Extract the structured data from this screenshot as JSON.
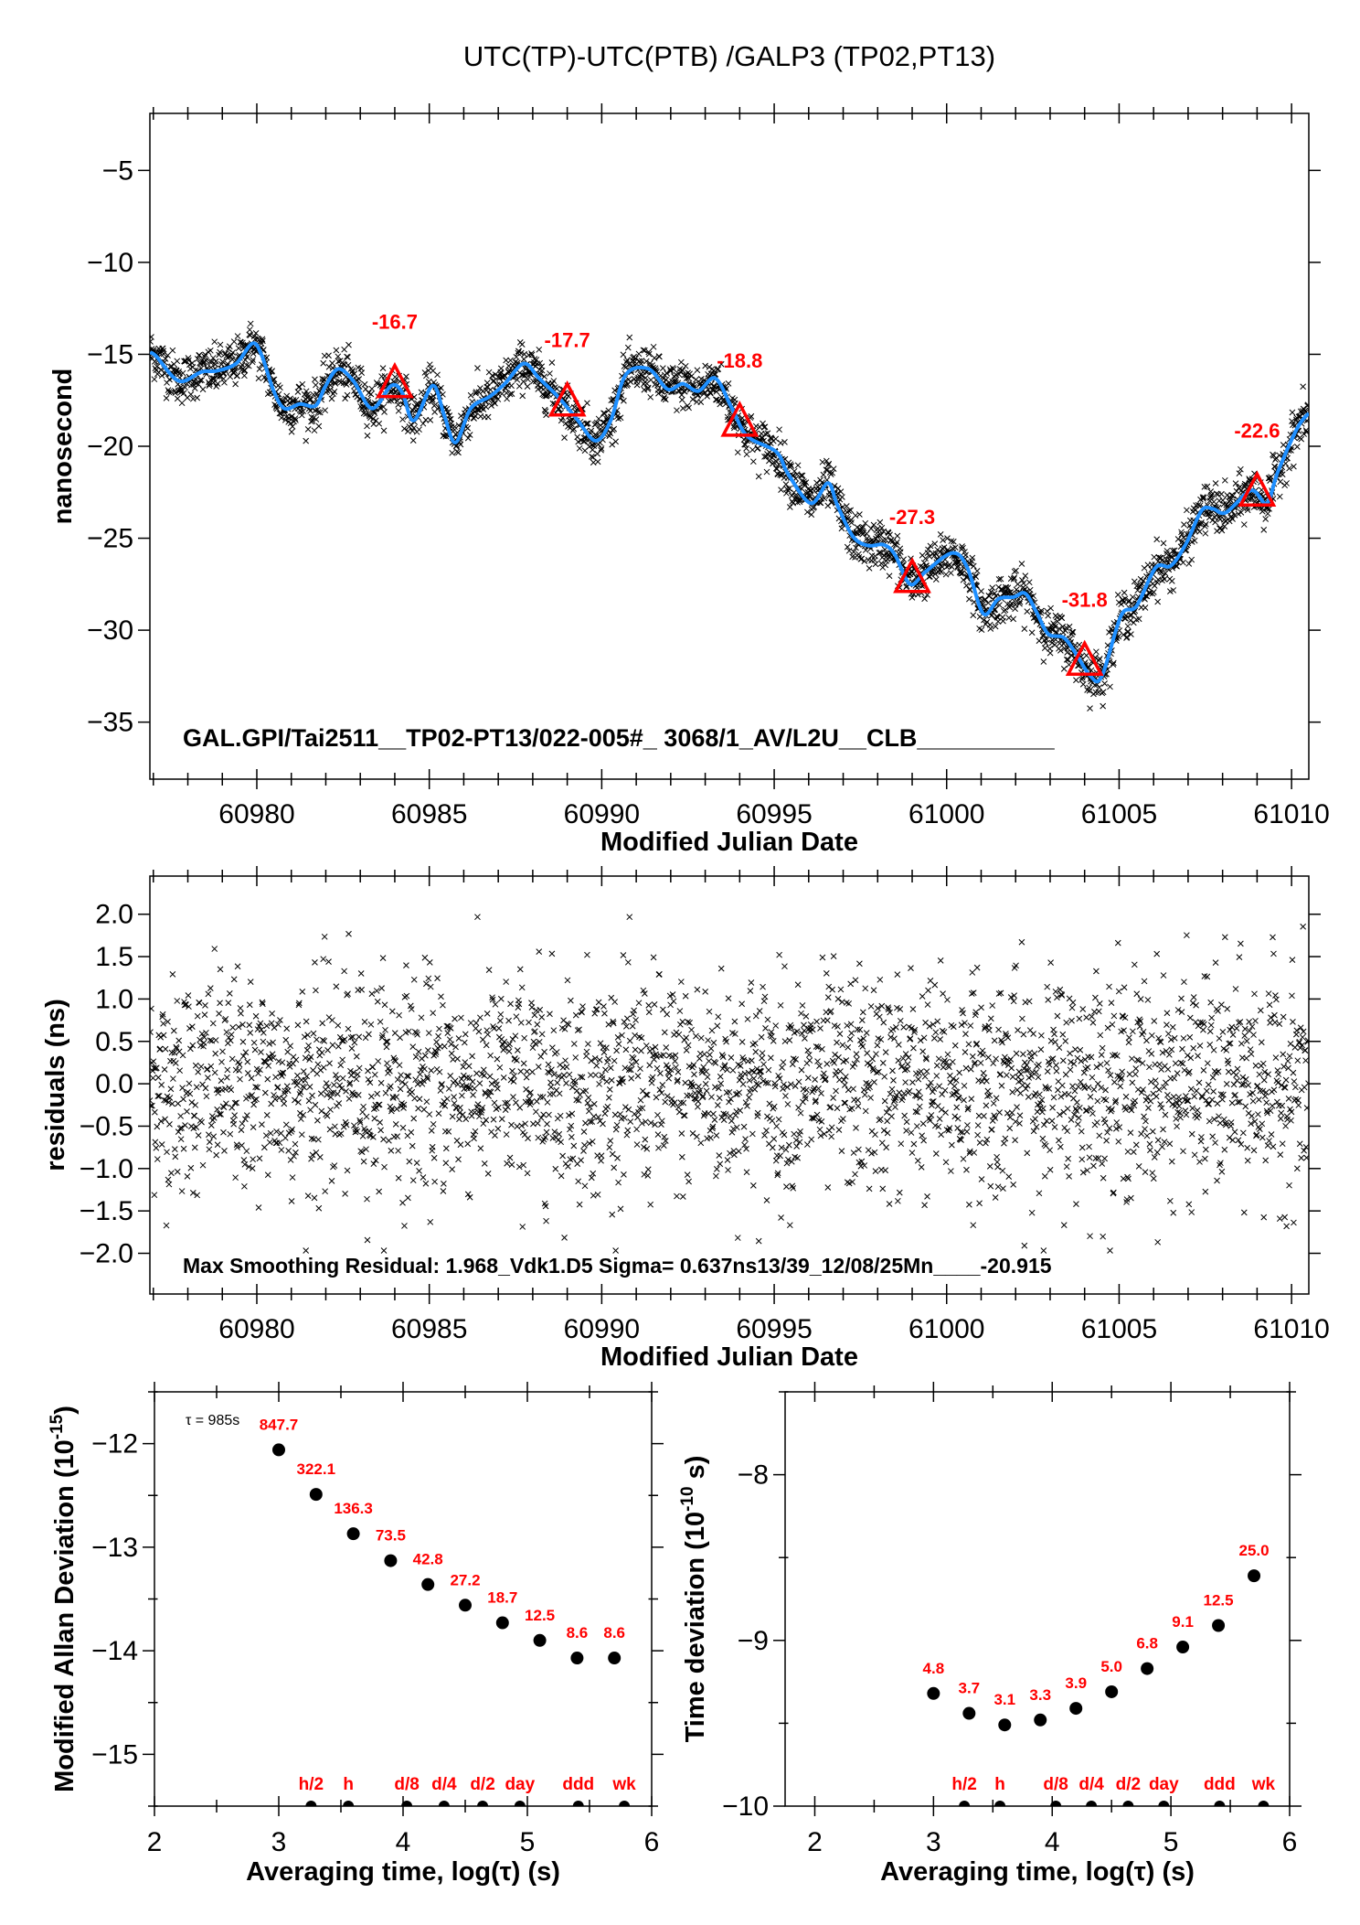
{
  "title": "UTC(TP)-UTC(PTB)  /GALP3  (TP02,PT13)",
  "chart_data": [
    {
      "id": "time-series",
      "type": "scatter",
      "xlabel": "Modified Julian Date",
      "ylabel": "nanosecond",
      "xlim": [
        60976.9,
        61010.5
      ],
      "ylim": [
        -38.1,
        -1.9
      ],
      "xticks": [
        60980,
        60985,
        60990,
        60995,
        61000,
        61005,
        61010
      ],
      "xtick_labels": [
        "60980",
        "60985",
        "60990",
        "60995",
        "61000",
        "61005",
        "61010"
      ],
      "yticks": [
        -5,
        -10,
        -15,
        -20,
        -25,
        -30,
        -35
      ],
      "ytick_labels": [
        "−5",
        "−10",
        "−15",
        "−20",
        "−25",
        "−30",
        "−35"
      ],
      "annotation": "GAL.GPI/Tai2511__TP02-PT13/022-005#_  3068/1_AV/L2U__CLB__________",
      "point_color": "#000000",
      "line_color": "#1e8fff",
      "marker_color": "#ff0000",
      "smooth_curve": {
        "x": [
          60976.9,
          60977.08,
          60977.74,
          60978.4,
          60978.84,
          60979.4,
          60979.88,
          60980.15,
          60980.48,
          60980.8,
          60981.25,
          60981.7,
          60981.97,
          60982.35,
          60982.8,
          60983.34,
          60983.9,
          60984.22,
          60984.55,
          60985.1,
          60985.43,
          60985.76,
          60986.2,
          60986.75,
          60987.19,
          60987.74,
          60988.18,
          60988.73,
          60989.27,
          60989.82,
          60990.26,
          60990.7,
          60991.36,
          60991.91,
          60992.35,
          60992.8,
          60993.29,
          60993.78,
          60994.22,
          60995.06,
          60995.4,
          60996.06,
          60996.56,
          60996.83,
          60997.28,
          60997.72,
          60998.17,
          60998.5,
          60998.94,
          60999.4,
          61000.17,
          61000.6,
          61001.06,
          61001.5,
          61001.94,
          61002.28,
          61002.6,
          61002.94,
          61003.39,
          61003.72,
          61004.17,
          61004.5,
          61005.06,
          61005.5,
          61006.06,
          61006.5,
          61006.94,
          61007.39,
          61007.72,
          61008.1,
          61008.83,
          61009.28,
          61009.6,
          61010.17,
          61010.5
        ],
        "y": [
          -14.9,
          -15.1,
          -16.45,
          -15.95,
          -15.9,
          -15.5,
          -14.4,
          -15.1,
          -16.95,
          -17.95,
          -17.7,
          -17.8,
          -16.8,
          -15.8,
          -16.45,
          -17.95,
          -16.7,
          -17.1,
          -18.6,
          -16.7,
          -18.3,
          -19.8,
          -17.95,
          -17.3,
          -16.6,
          -15.5,
          -16.3,
          -17.3,
          -18.5,
          -19.7,
          -18.6,
          -16.1,
          -15.8,
          -16.9,
          -16.6,
          -17.0,
          -16.3,
          -17.95,
          -19.45,
          -20.3,
          -21.5,
          -23.1,
          -22.0,
          -23.2,
          -24.9,
          -25.4,
          -25.35,
          -25.9,
          -27.5,
          -26.8,
          -25.8,
          -26.6,
          -29.1,
          -28.3,
          -28.2,
          -28.0,
          -29.0,
          -30.2,
          -30.4,
          -31.2,
          -32.5,
          -32.5,
          -29.2,
          -28.7,
          -26.6,
          -26.5,
          -25.3,
          -23.5,
          -23.4,
          -23.6,
          -22.4,
          -23.1,
          -21.4,
          -19.0,
          -18.2
        ]
      },
      "markers": [
        {
          "x": 60984,
          "y": -16.7,
          "label": "-16.7"
        },
        {
          "x": 60989,
          "y": -17.7,
          "label": "-17.7"
        },
        {
          "x": 60994,
          "y": -18.8,
          "label": "-18.8"
        },
        {
          "x": 60999,
          "y": -27.3,
          "label": "-27.3"
        },
        {
          "x": 61004,
          "y": -31.8,
          "label": "-31.8"
        },
        {
          "x": 61009,
          "y": -22.6,
          "label": "-22.6"
        }
      ]
    },
    {
      "id": "residuals",
      "type": "scatter",
      "xlabel": "Modified Julian Date",
      "ylabel": "residuals (ns)",
      "xlim": [
        60976.9,
        61010.5
      ],
      "ylim": [
        -2.48,
        2.45
      ],
      "xticks": [
        60980,
        60985,
        60990,
        60995,
        61000,
        61005,
        61010
      ],
      "xtick_labels": [
        "60980",
        "60985",
        "60990",
        "60995",
        "61000",
        "61005",
        "61010"
      ],
      "yticks": [
        2.0,
        1.5,
        1.0,
        0.5,
        0.0,
        -0.5,
        -1.0,
        -1.5,
        -2.0
      ],
      "ytick_labels": [
        "2.0",
        "1.5",
        "1.0",
        "0.5",
        "0.0",
        "−0.5",
        "−1.0",
        "−1.5",
        "−2.0"
      ],
      "annotation": "Max Smoothing Residual: 1.968_Vdk1.D5  Sigma= 0.637ns13/39_12/08/25Mn____-20.915",
      "sigma": 0.637,
      "max_residual": 1.968
    },
    {
      "id": "mdev",
      "type": "scatter",
      "xlabel": "Averaging time, log(τ) (s)",
      "ylabel": "Modified Allan Deviation (10",
      "ylabel_exp": "-15",
      "ylabel_tail": ")",
      "xlim": [
        2,
        6
      ],
      "ylim": [
        -15.5,
        -11.5
      ],
      "xticks": [
        2,
        3,
        4,
        5,
        6
      ],
      "xtick_labels": [
        "2",
        "3",
        "4",
        "5",
        "6"
      ],
      "yticks": [
        -12,
        -13,
        -14,
        -15
      ],
      "ytick_labels": [
        "−12",
        "−13",
        "−14",
        "−15"
      ],
      "note": "τ = 985s",
      "x": [
        3.0,
        3.3,
        3.6,
        3.9,
        4.2,
        4.5,
        4.8,
        5.1,
        5.4,
        5.7
      ],
      "y": [
        -12.06,
        -12.49,
        -12.87,
        -13.13,
        -13.36,
        -13.56,
        -13.73,
        -13.9,
        -14.07,
        -14.07
      ],
      "point_labels": [
        "847.7",
        "322.1",
        "136.3",
        "73.5",
        "42.8",
        "27.2",
        "18.7",
        "12.5",
        "8.6",
        "8.6"
      ],
      "label_color": "#ff0000",
      "time_markers": [
        {
          "x": 3.26,
          "label": "h/2"
        },
        {
          "x": 3.56,
          "label": "h"
        },
        {
          "x": 4.03,
          "label": "d/8"
        },
        {
          "x": 4.33,
          "label": "d/4"
        },
        {
          "x": 4.64,
          "label": "d/2"
        },
        {
          "x": 4.94,
          "label": "day"
        },
        {
          "x": 5.41,
          "label": "ddd"
        },
        {
          "x": 5.78,
          "label": "wk"
        }
      ]
    },
    {
      "id": "tdev",
      "type": "scatter",
      "xlabel": "Averaging time, log(τ) (s)",
      "ylabel": "Time deviation (10",
      "ylabel_exp": "-10",
      "ylabel_tail": " s)",
      "xlim": [
        1.75,
        6
      ],
      "ylim": [
        -10,
        -7.5
      ],
      "xticks": [
        2,
        3,
        4,
        5,
        6
      ],
      "xtick_labels": [
        "2",
        "3",
        "4",
        "5",
        "6"
      ],
      "yticks": [
        -8,
        -9,
        -10
      ],
      "ytick_labels": [
        "−8",
        "−9",
        "−10"
      ],
      "x": [
        3.0,
        3.3,
        3.6,
        3.9,
        4.2,
        4.5,
        4.8,
        5.1,
        5.4,
        5.7
      ],
      "y": [
        -9.32,
        -9.44,
        -9.51,
        -9.48,
        -9.41,
        -9.31,
        -9.17,
        -9.04,
        -8.91,
        -8.61
      ],
      "point_labels": [
        "4.8",
        "3.7",
        "3.1",
        "3.3",
        "3.9",
        "5.0",
        "6.8",
        "9.1",
        "12.5",
        "25.0"
      ],
      "label_color": "#ff0000",
      "time_markers": [
        {
          "x": 3.26,
          "label": "h/2"
        },
        {
          "x": 3.56,
          "label": "h"
        },
        {
          "x": 4.03,
          "label": "d/8"
        },
        {
          "x": 4.33,
          "label": "d/4"
        },
        {
          "x": 4.64,
          "label": "d/2"
        },
        {
          "x": 4.94,
          "label": "day"
        },
        {
          "x": 5.41,
          "label": "ddd"
        },
        {
          "x": 5.78,
          "label": "wk"
        }
      ]
    }
  ]
}
